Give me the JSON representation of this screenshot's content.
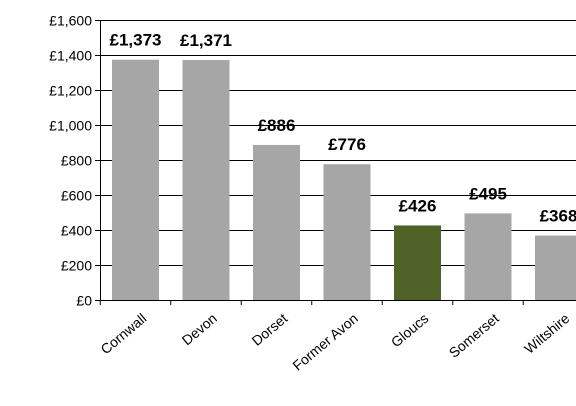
{
  "chart_data": {
    "type": "bar",
    "title": "",
    "xlabel": "",
    "ylabel": "",
    "categories": [
      "Cornwall",
      "Devon",
      "Dorset",
      "Former Avon",
      "Gloucs",
      "Somerset",
      "Wiltshire"
    ],
    "values": [
      1373,
      1371,
      886,
      776,
      426,
      495,
      368
    ],
    "data_labels": [
      "£1,373",
      "£1,371",
      "£886",
      "£776",
      "£426",
      "£495",
      "£368"
    ],
    "ylim": [
      0,
      1600
    ],
    "yticks": [
      0,
      200,
      400,
      600,
      800,
      1000,
      1200,
      1400,
      1600
    ],
    "ytick_labels": [
      "£0",
      "£200",
      "£400",
      "£600",
      "£800",
      "£1,000",
      "£1,200",
      "£1,400",
      "£1,600"
    ],
    "grid": true,
    "legend": "none",
    "colors": {
      "bar": "#A6A6A6",
      "highlight": "#4F6228",
      "grid": "#000000"
    },
    "highlight_category": "Gloucs"
  }
}
